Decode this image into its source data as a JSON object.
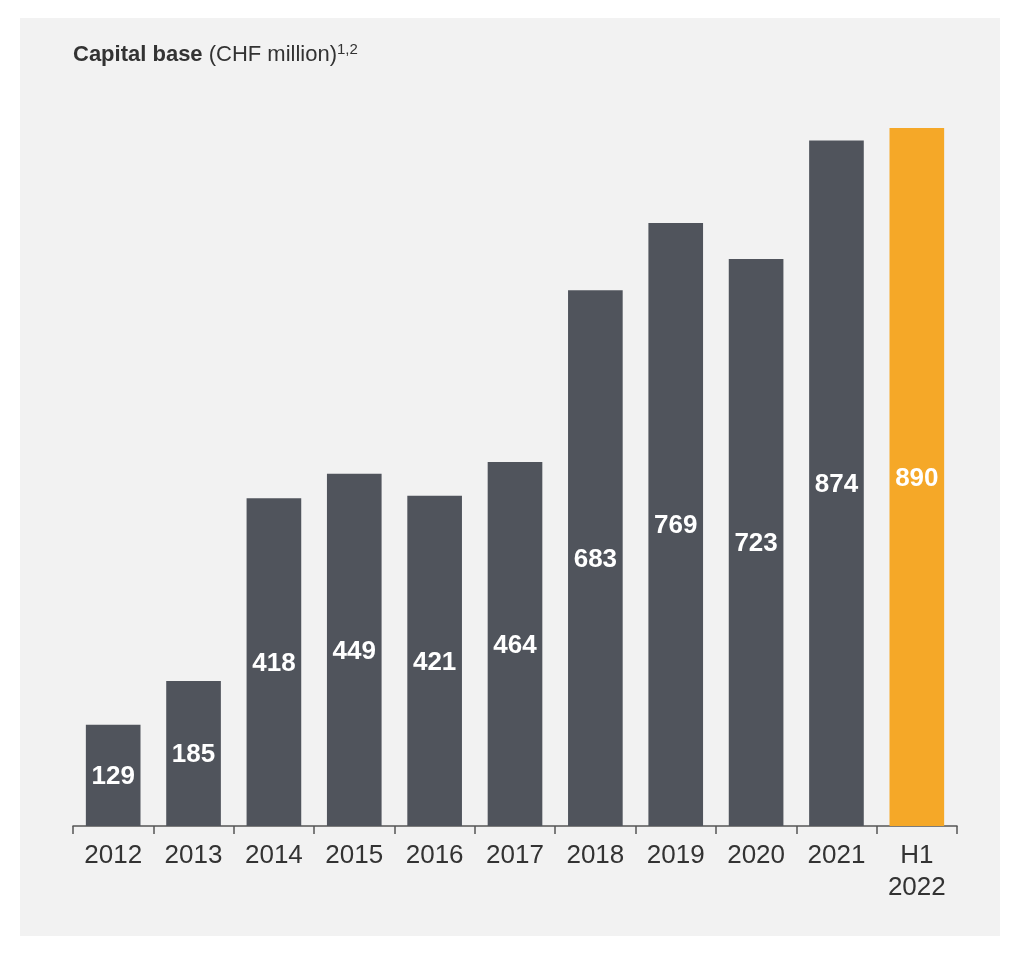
{
  "chart_data": {
    "type": "bar",
    "title": "Capital base (CHF million)$^{1,2}$",
    "categories": [
      "2012",
      "2013",
      "2014",
      "2015",
      "2016",
      "2017",
      "2018",
      "2019",
      "2020",
      "2021",
      "H1\n2022"
    ],
    "values": [
      129,
      185,
      418,
      449,
      421,
      464,
      683,
      769,
      723,
      874,
      890
    ],
    "colors": [
      "#50545c",
      "#50545c",
      "#50545c",
      "#50545c",
      "#50545c",
      "#50545c",
      "#50545c",
      "#50545c",
      "#50545c",
      "#50545c",
      "#f5a828"
    ],
    "data_labels": true
  }
}
